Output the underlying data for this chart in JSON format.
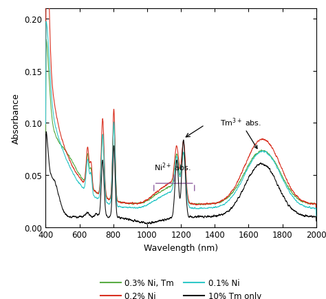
{
  "xlabel": "Wavelength (nm)",
  "ylabel": "Absorbance",
  "xlim": [
    400,
    2000
  ],
  "ylim": [
    0,
    0.21
  ],
  "yticks": [
    0,
    0.05,
    0.1,
    0.15,
    0.2
  ],
  "xticks": [
    400,
    600,
    800,
    1000,
    1200,
    1400,
    1600,
    1800,
    2000
  ],
  "colors": {
    "green": "#5aac44",
    "red": "#d93020",
    "cyan": "#30c8c8",
    "black": "#111111"
  },
  "legend": [
    {
      "label": "0.3% Ni, Tm",
      "color": "#5aac44"
    },
    {
      "label": "0.2% Ni",
      "color": "#d93020"
    },
    {
      "label": "0.1% Ni",
      "color": "#30c8c8"
    },
    {
      "label": "10% Tm only",
      "color": "#111111"
    }
  ]
}
